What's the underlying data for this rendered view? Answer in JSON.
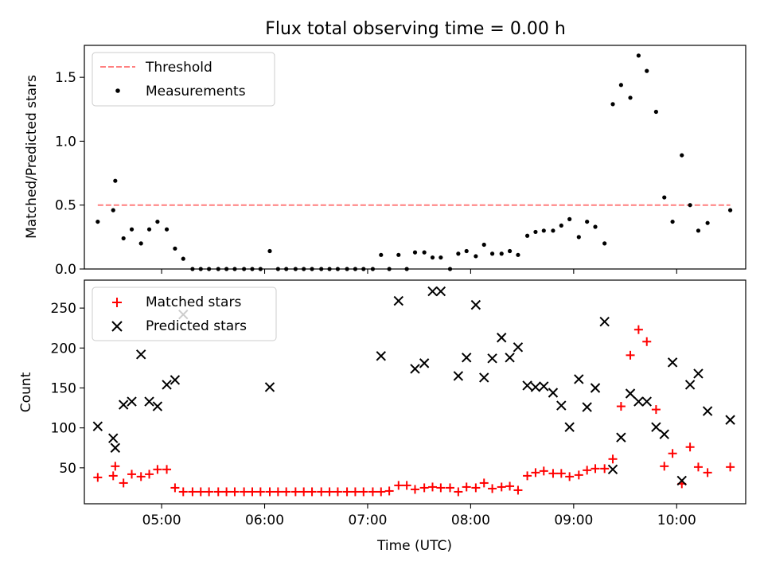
{
  "chart_data": [
    {
      "type": "scatter",
      "title": "Flux total observing time = 0.00 h",
      "xlabel": "",
      "ylabel": "Matched/Predicted stars",
      "xlim": [
        4.25,
        10.67
      ],
      "ylim": [
        0,
        1.75
      ],
      "x_ticks": [
        5,
        6,
        7,
        8,
        9,
        10
      ],
      "x_tick_labels": [
        "",
        "",
        "",
        "",
        "",
        ""
      ],
      "y_ticks": [
        0,
        0.5,
        1.0,
        1.5
      ],
      "y_tick_labels": [
        "0.0",
        "0.5",
        "1.0",
        "1.5"
      ],
      "legend_position": "top-left",
      "colors": {
        "threshold": "#ff7f7f",
        "measurements": "#000000"
      },
      "series": [
        {
          "name": "Threshold",
          "kind": "dashed-line",
          "x": [
            4.38,
            10.52
          ],
          "y": [
            0.5,
            0.5
          ]
        },
        {
          "name": "Measurements",
          "kind": "points",
          "x": [
            4.38,
            4.53,
            4.55,
            4.63,
            4.71,
            4.8,
            4.88,
            4.96,
            5.05,
            5.13,
            5.21,
            5.3,
            5.38,
            5.46,
            5.55,
            5.63,
            5.71,
            5.8,
            5.88,
            5.96,
            6.05,
            6.13,
            6.21,
            6.3,
            6.38,
            6.46,
            6.55,
            6.63,
            6.71,
            6.8,
            6.88,
            6.96,
            7.05,
            7.13,
            7.21,
            7.3,
            7.38,
            7.46,
            7.55,
            7.63,
            7.71,
            7.8,
            7.88,
            7.96,
            8.05,
            8.13,
            8.21,
            8.3,
            8.38,
            8.46,
            8.55,
            8.63,
            8.71,
            8.8,
            8.88,
            8.96,
            9.05,
            9.13,
            9.21,
            9.3,
            9.38,
            9.46,
            9.55,
            9.63,
            9.71,
            9.8,
            9.88,
            9.96,
            10.05,
            10.13,
            10.21,
            10.3,
            10.52
          ],
          "y": [
            0.37,
            0.46,
            0.69,
            0.24,
            0.31,
            0.2,
            0.31,
            0.37,
            0.31,
            0.16,
            0.08,
            0,
            0,
            0,
            0,
            0,
            0,
            0,
            0,
            0,
            0.14,
            0,
            0,
            0,
            0,
            0,
            0,
            0,
            0,
            0,
            0,
            0,
            0,
            0.11,
            0,
            0.11,
            0,
            0.13,
            0.13,
            0.09,
            0.09,
            0,
            0.12,
            0.14,
            0.1,
            0.19,
            0.12,
            0.12,
            0.14,
            0.11,
            0.26,
            0.29,
            0.3,
            0.3,
            0.34,
            0.39,
            0.25,
            0.37,
            0.33,
            0.2,
            1.29,
            1.44,
            1.34,
            1.67,
            1.55,
            1.23,
            0.56,
            0.37,
            0.89,
            0.5,
            0.3,
            0.36,
            0.46
          ]
        }
      ]
    },
    {
      "type": "scatter",
      "title": "",
      "xlabel": "Time (UTC)",
      "ylabel": "Count",
      "xlim": [
        4.25,
        10.67
      ],
      "ylim": [
        5,
        285
      ],
      "x_ticks": [
        5,
        6,
        7,
        8,
        9,
        10
      ],
      "x_tick_labels": [
        "05:00",
        "06:00",
        "07:00",
        "08:00",
        "09:00",
        "10:00"
      ],
      "y_ticks": [
        50,
        100,
        150,
        200,
        250
      ],
      "y_tick_labels": [
        "50",
        "100",
        "150",
        "200",
        "250"
      ],
      "legend_position": "top-left",
      "colors": {
        "matched": "#ff0000",
        "predicted": "#000000"
      },
      "series": [
        {
          "name": "Matched stars",
          "kind": "plus",
          "x": [
            4.38,
            4.53,
            4.55,
            4.63,
            4.71,
            4.8,
            4.88,
            4.96,
            5.05,
            5.13,
            5.21,
            5.3,
            5.38,
            5.46,
            5.55,
            5.63,
            5.71,
            5.8,
            5.88,
            5.96,
            6.05,
            6.13,
            6.21,
            6.3,
            6.38,
            6.46,
            6.55,
            6.63,
            6.71,
            6.8,
            6.88,
            6.96,
            7.05,
            7.13,
            7.21,
            7.3,
            7.38,
            7.46,
            7.55,
            7.63,
            7.71,
            7.8,
            7.88,
            7.96,
            8.05,
            8.13,
            8.21,
            8.3,
            8.38,
            8.46,
            8.55,
            8.63,
            8.71,
            8.8,
            8.88,
            8.96,
            9.05,
            9.13,
            9.21,
            9.3,
            9.38,
            9.46,
            9.55,
            9.63,
            9.71,
            9.8,
            9.88,
            9.96,
            10.05,
            10.13,
            10.21,
            10.3,
            10.52
          ],
          "y": [
            38,
            40,
            52,
            31,
            42,
            39,
            42,
            48,
            48,
            25,
            20,
            20,
            20,
            20,
            20,
            20,
            20,
            20,
            20,
            20,
            20,
            20,
            20,
            20,
            20,
            20,
            20,
            20,
            20,
            20,
            20,
            20,
            20,
            20,
            21,
            28,
            28,
            23,
            25,
            26,
            25,
            25,
            20,
            26,
            25,
            31,
            24,
            26,
            27,
            22,
            40,
            44,
            46,
            43,
            43,
            39,
            41,
            47,
            49,
            49,
            61,
            127,
            191,
            223,
            208,
            123,
            52,
            68,
            30,
            76,
            51,
            44,
            51
          ]
        },
        {
          "name": "Predicted stars",
          "kind": "x",
          "x": [
            4.38,
            4.53,
            4.55,
            4.63,
            4.71,
            4.8,
            4.88,
            4.96,
            5.05,
            5.13,
            5.21,
            6.05,
            7.13,
            7.3,
            7.46,
            7.55,
            7.63,
            7.71,
            7.88,
            7.96,
            8.05,
            8.13,
            8.21,
            8.3,
            8.38,
            8.46,
            8.55,
            8.63,
            8.71,
            8.8,
            8.88,
            8.96,
            9.05,
            9.13,
            9.21,
            9.3,
            9.38,
            9.46,
            9.55,
            9.63,
            9.71,
            9.8,
            9.88,
            9.96,
            10.05,
            10.13,
            10.21,
            10.3,
            10.52
          ],
          "y": [
            102,
            87,
            75,
            129,
            133,
            192,
            133,
            127,
            154,
            160,
            242,
            151,
            190,
            259,
            174,
            181,
            271,
            271,
            165,
            188,
            254,
            163,
            187,
            213,
            188,
            201,
            153,
            151,
            152,
            144,
            128,
            101,
            161,
            126,
            150,
            233,
            48,
            88,
            143,
            133,
            133,
            101,
            92,
            182,
            34,
            154,
            168,
            121,
            110
          ]
        }
      ]
    }
  ]
}
